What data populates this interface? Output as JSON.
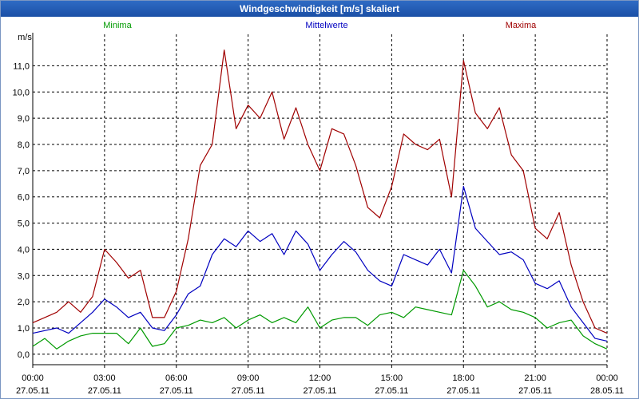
{
  "window": {
    "title": "Windgeschwindigkeit [m/s] skaliert"
  },
  "colors": {
    "minima": "#009a00",
    "mittel": "#0000c0",
    "maxima": "#a00000",
    "grid": "#000000"
  },
  "chart_data": {
    "type": "line",
    "title": "Windgeschwindigkeit [m/s] skaliert",
    "ylabel": "m/s",
    "xlabel": "",
    "xlim": [
      0,
      24
    ],
    "ylim": [
      -0.4,
      12.2
    ],
    "yticks": [
      0,
      1,
      2,
      3,
      4,
      5,
      6,
      7,
      8,
      9,
      10,
      11
    ],
    "ytick_labels": [
      "0,0",
      "1,0",
      "2,0",
      "3,0",
      "4,0",
      "5,0",
      "6,0",
      "7,0",
      "8,0",
      "9,0",
      "10,0",
      "11,0"
    ],
    "xticks": [
      {
        "hour": 0,
        "time": "00:00",
        "date": "27.05.11"
      },
      {
        "hour": 3,
        "time": "03:00",
        "date": "27.05.11"
      },
      {
        "hour": 6,
        "time": "06:00",
        "date": "27.05.11"
      },
      {
        "hour": 9,
        "time": "09:00",
        "date": "27.05.11"
      },
      {
        "hour": 12,
        "time": "12:00",
        "date": "27.05.11"
      },
      {
        "hour": 15,
        "time": "15:00",
        "date": "27.05.11"
      },
      {
        "hour": 18,
        "time": "18:00",
        "date": "27.05.11"
      },
      {
        "hour": 21,
        "time": "21:00",
        "date": "27.05.11"
      },
      {
        "hour": 24,
        "time": "00:00",
        "date": "28.05.11"
      }
    ],
    "series": [
      {
        "name": "Minima",
        "color": "#009a00",
        "x": [
          0,
          0.5,
          1,
          1.5,
          2,
          2.5,
          3,
          3.5,
          4,
          4.5,
          5,
          5.5,
          6,
          6.5,
          7,
          7.5,
          8,
          8.5,
          9,
          9.5,
          10,
          10.5,
          11,
          11.5,
          12,
          12.5,
          13,
          13.5,
          14,
          14.5,
          15,
          15.5,
          16,
          16.5,
          17,
          17.5,
          18,
          18.5,
          19,
          19.5,
          20,
          20.5,
          21,
          21.5,
          22,
          22.5,
          23,
          23.5,
          24
        ],
        "values": [
          0.3,
          0.6,
          0.2,
          0.5,
          0.7,
          0.8,
          0.8,
          0.8,
          0.4,
          1.0,
          0.3,
          0.4,
          1.0,
          1.1,
          1.3,
          1.2,
          1.4,
          1.0,
          1.3,
          1.5,
          1.2,
          1.4,
          1.2,
          1.8,
          1.0,
          1.3,
          1.4,
          1.4,
          1.1,
          1.5,
          1.6,
          1.4,
          1.8,
          1.7,
          1.6,
          1.5,
          3.2,
          2.6,
          1.8,
          2.0,
          1.7,
          1.6,
          1.4,
          1.0,
          1.2,
          1.3,
          0.7,
          0.4,
          0.2
        ]
      },
      {
        "name": "Mittelwerte",
        "color": "#0000c0",
        "x": [
          0,
          0.5,
          1,
          1.5,
          2,
          2.5,
          3,
          3.5,
          4,
          4.5,
          5,
          5.5,
          6,
          6.5,
          7,
          7.5,
          8,
          8.5,
          9,
          9.5,
          10,
          10.5,
          11,
          11.5,
          12,
          12.5,
          13,
          13.5,
          14,
          14.5,
          15,
          15.5,
          16,
          16.5,
          17,
          17.5,
          18,
          18.5,
          19,
          19.5,
          20,
          20.5,
          21,
          21.5,
          22,
          22.5,
          23,
          23.5,
          24
        ],
        "values": [
          0.8,
          0.9,
          1.0,
          0.8,
          1.2,
          1.6,
          2.1,
          1.8,
          1.4,
          1.6,
          1.0,
          0.9,
          1.5,
          2.3,
          2.6,
          3.8,
          4.4,
          4.1,
          4.7,
          4.3,
          4.6,
          3.8,
          4.7,
          4.2,
          3.2,
          3.8,
          4.3,
          3.9,
          3.2,
          2.8,
          2.6,
          3.8,
          3.6,
          3.4,
          4.0,
          3.1,
          6.4,
          4.8,
          4.3,
          3.8,
          3.9,
          3.6,
          2.7,
          2.5,
          2.8,
          1.8,
          1.2,
          0.6,
          0.5
        ]
      },
      {
        "name": "Maxima",
        "color": "#a00000",
        "x": [
          0,
          0.5,
          1,
          1.5,
          2,
          2.5,
          3,
          3.5,
          4,
          4.5,
          5,
          5.5,
          6,
          6.5,
          7,
          7.5,
          8,
          8.5,
          9,
          9.5,
          10,
          10.5,
          11,
          11.5,
          12,
          12.5,
          13,
          13.5,
          14,
          14.5,
          15,
          15.5,
          16,
          16.5,
          17,
          17.5,
          18,
          18.5,
          19,
          19.5,
          20,
          20.5,
          21,
          21.5,
          22,
          22.5,
          23,
          23.5,
          24
        ],
        "values": [
          1.2,
          1.4,
          1.6,
          2.0,
          1.6,
          2.2,
          4.0,
          3.5,
          2.9,
          3.2,
          1.4,
          1.4,
          2.4,
          4.4,
          7.2,
          8.0,
          11.6,
          8.6,
          9.5,
          9.0,
          10.0,
          8.2,
          9.4,
          8.0,
          7.0,
          8.6,
          8.4,
          7.2,
          5.6,
          5.2,
          6.4,
          8.4,
          8.0,
          7.8,
          8.2,
          6.0,
          11.2,
          9.2,
          8.6,
          9.4,
          7.6,
          7.0,
          4.8,
          4.4,
          5.4,
          3.4,
          2.0,
          1.0,
          0.8
        ]
      }
    ],
    "legend": [
      "Minima",
      "Mittelwerte",
      "Maxima"
    ],
    "grid": true
  }
}
